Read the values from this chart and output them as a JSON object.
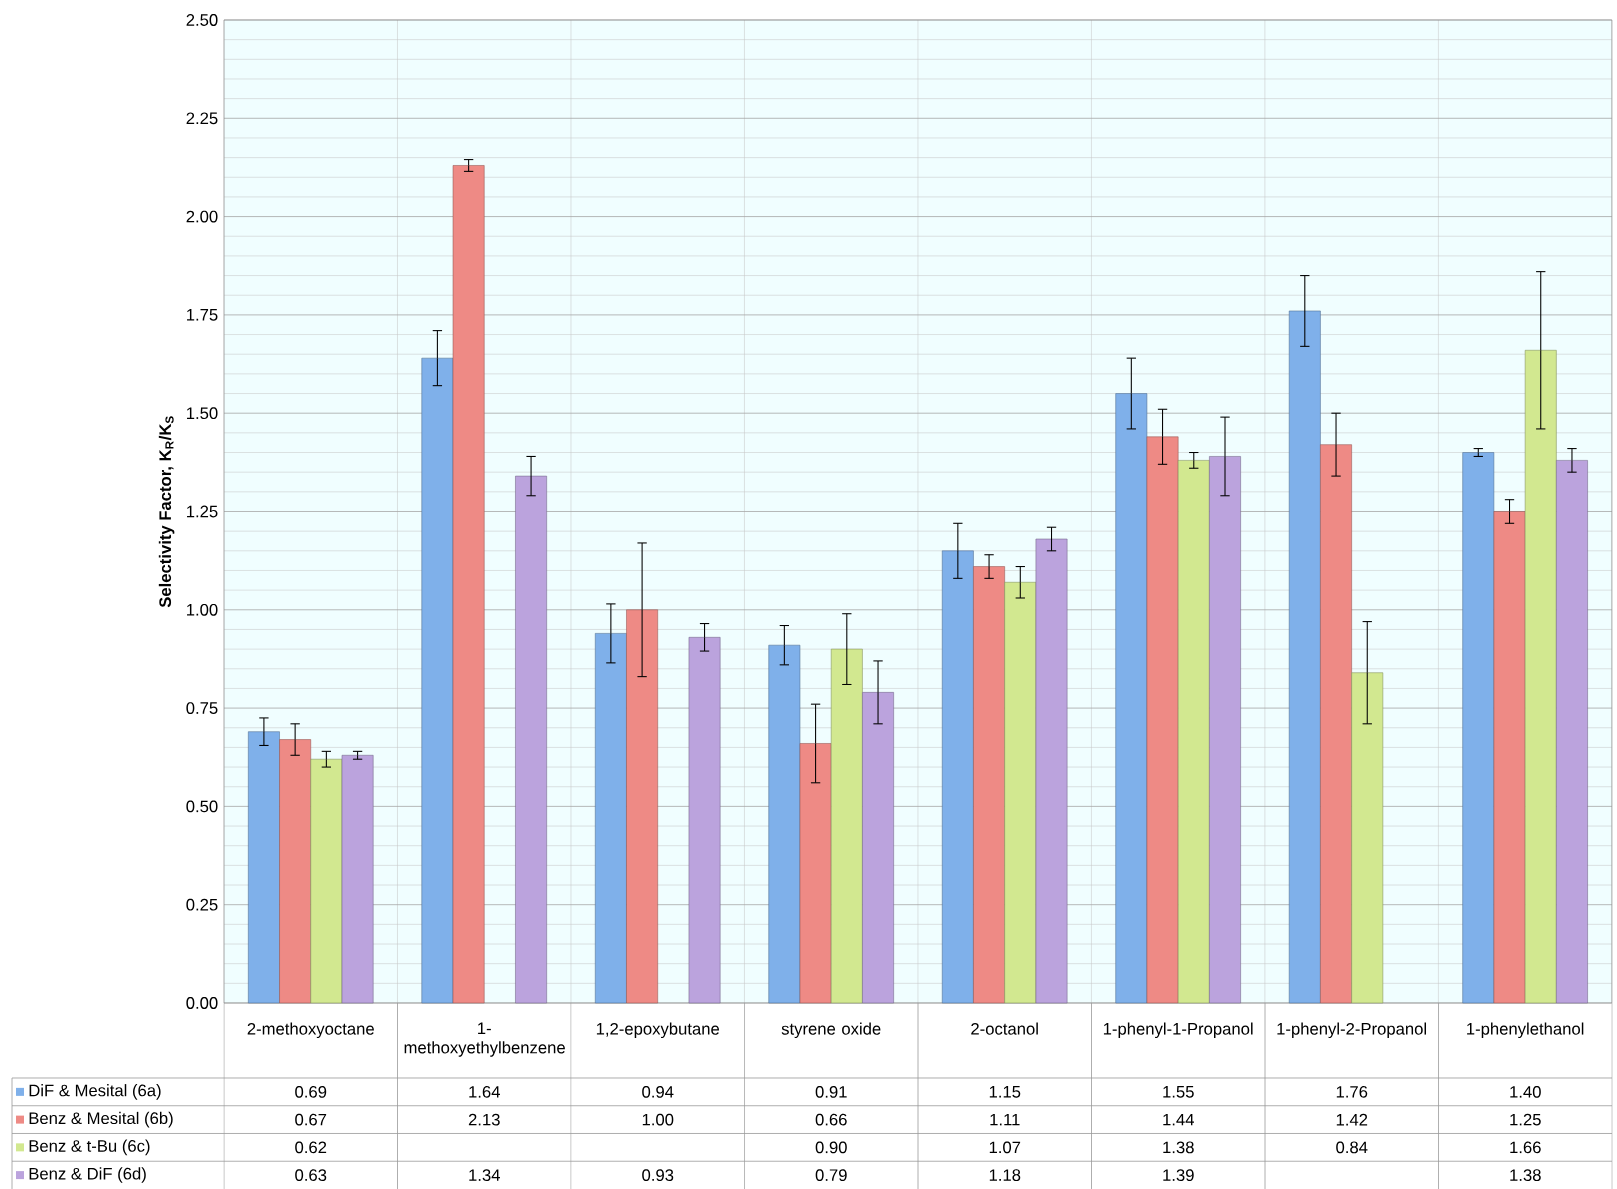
{
  "chart_data": {
    "type": "bar",
    "ylabel": "Selectivity Factor, K$_{R}$/K$_{S}$",
    "categories": [
      "2-methoxyoctane",
      "1-methoxyethylbenzene",
      "1,2-epoxybutane",
      "styrene oxide",
      "2-octanol",
      "1-phenyl-1-Propanol",
      "1-phenyl-2-Propanol",
      "1-phenylethanol"
    ],
    "series": [
      {
        "name": "DiF & Mesital (6a)",
        "color": "#7fb0ea",
        "values": [
          0.69,
          1.64,
          0.94,
          0.91,
          1.15,
          1.55,
          1.76,
          1.4
        ],
        "errors": [
          0.035,
          0.07,
          0.075,
          0.05,
          0.07,
          0.09,
          0.09,
          0.01
        ],
        "value_labels": [
          "0.69",
          "1.64",
          "0.94",
          "0.91",
          "1.15",
          "1.55",
          "1.76",
          "1.40"
        ]
      },
      {
        "name": "Benz & Mesital (6b)",
        "color": "#ee8a85",
        "values": [
          0.67,
          2.13,
          1.0,
          0.66,
          1.11,
          1.44,
          1.42,
          1.25
        ],
        "errors": [
          0.04,
          0.015,
          0.17,
          0.1,
          0.03,
          0.07,
          0.08,
          0.03
        ],
        "value_labels": [
          "0.67",
          "2.13",
          "1.00",
          "0.66",
          "1.11",
          "1.44",
          "1.42",
          "1.25"
        ]
      },
      {
        "name": "Benz & t-Bu (6c)",
        "color": "#d2e890",
        "values": [
          0.62,
          null,
          null,
          0.9,
          1.07,
          1.38,
          0.84,
          1.66
        ],
        "errors": [
          0.02,
          null,
          null,
          0.09,
          0.04,
          0.02,
          0.13,
          0.2
        ],
        "value_labels": [
          "0.62",
          null,
          null,
          "0.90",
          "1.07",
          "1.38",
          "0.84",
          "1.66"
        ]
      },
      {
        "name": "Benz & DiF (6d)",
        "color": "#bba3dd",
        "values": [
          0.63,
          1.34,
          0.93,
          0.79,
          1.18,
          1.39,
          null,
          1.38
        ],
        "errors": [
          0.01,
          0.05,
          0.035,
          0.08,
          0.03,
          0.1,
          null,
          0.03
        ],
        "value_labels": [
          "0.63",
          "1.34",
          "0.93",
          "0.79",
          "1.18",
          "1.39",
          null,
          "1.38"
        ]
      }
    ],
    "ylim": [
      0,
      2.5
    ],
    "yticks": [
      {
        "value": 0,
        "label": "0.00"
      },
      {
        "value": 0.25,
        "label": "0.25"
      },
      {
        "value": 0.5,
        "label": "0.50"
      },
      {
        "value": 0.75,
        "label": "0.75"
      },
      {
        "value": 1,
        "label": "1.00"
      },
      {
        "value": 1.25,
        "label": "1.25"
      },
      {
        "value": 1.5,
        "label": "1.50"
      },
      {
        "value": 1.75,
        "label": "1.75"
      },
      {
        "value": 2,
        "label": "2.00"
      },
      {
        "value": 2.25,
        "label": "2.25"
      },
      {
        "value": 2.5,
        "label": "2.50"
      }
    ],
    "grid": true,
    "legend": "bottom left"
  }
}
